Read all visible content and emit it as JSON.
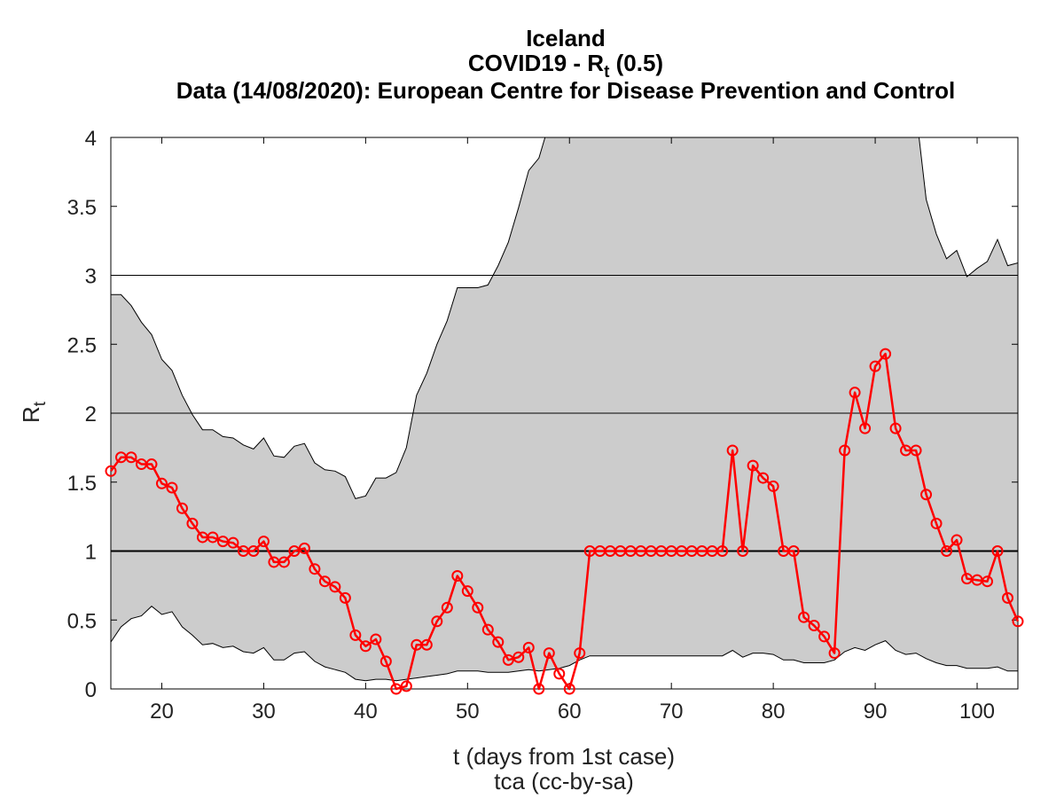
{
  "chart_data": {
    "type": "line",
    "title_lines": [
      "Iceland",
      "COVID19 - R",
      "Data (14/08/2020): European Centre for Disease Prevention and Control"
    ],
    "title_subscript": "t",
    "title_suffix": " (0.5)",
    "xlabel": "t (days from 1st case)",
    "ylabel": "R",
    "ylabel_subscript": "t",
    "credit": "tca (cc-by-sa)",
    "xlim": [
      15,
      104
    ],
    "ylim": [
      0,
      4
    ],
    "xticks": [
      20,
      30,
      40,
      50,
      60,
      70,
      80,
      90,
      100
    ],
    "yticks": [
      0,
      0.5,
      1,
      1.5,
      2,
      2.5,
      3,
      3.5,
      4
    ],
    "ytick_labels": [
      "0",
      "0.5",
      "1",
      "1.5",
      "2",
      "2.5",
      "3",
      "3.5",
      "4"
    ],
    "reference_lines": [
      1,
      2,
      3
    ],
    "grid": false,
    "band_color": "#cccccc",
    "series_color": "#ff0000",
    "band_upper": [
      [
        15,
        2.86
      ],
      [
        16,
        2.86
      ],
      [
        17,
        2.78
      ],
      [
        18,
        2.66
      ],
      [
        19,
        2.57
      ],
      [
        20,
        2.39
      ],
      [
        21,
        2.31
      ],
      [
        22,
        2.13
      ],
      [
        23,
        1.99
      ],
      [
        24,
        1.88
      ],
      [
        25,
        1.88
      ],
      [
        26,
        1.83
      ],
      [
        27,
        1.82
      ],
      [
        28,
        1.77
      ],
      [
        29,
        1.74
      ],
      [
        30,
        1.82
      ],
      [
        31,
        1.69
      ],
      [
        32,
        1.68
      ],
      [
        33,
        1.76
      ],
      [
        34,
        1.78
      ],
      [
        35,
        1.64
      ],
      [
        36,
        1.59
      ],
      [
        37,
        1.58
      ],
      [
        38,
        1.54
      ],
      [
        39,
        1.38
      ],
      [
        40,
        1.4
      ],
      [
        41,
        1.53
      ],
      [
        42,
        1.53
      ],
      [
        43,
        1.57
      ],
      [
        44,
        1.75
      ],
      [
        45,
        2.13
      ],
      [
        46,
        2.29
      ],
      [
        47,
        2.5
      ],
      [
        48,
        2.67
      ],
      [
        49,
        2.91
      ],
      [
        50,
        2.91
      ],
      [
        51,
        2.91
      ],
      [
        52,
        2.93
      ],
      [
        53,
        3.07
      ],
      [
        54,
        3.24
      ],
      [
        55,
        3.49
      ],
      [
        56,
        3.76
      ],
      [
        57,
        3.85
      ],
      [
        57.6,
        4.0
      ],
      [
        94.3,
        4.0
      ],
      [
        95,
        3.55
      ],
      [
        96,
        3.3
      ],
      [
        97,
        3.12
      ],
      [
        98,
        3.18
      ],
      [
        99,
        2.99
      ],
      [
        100,
        3.05
      ],
      [
        101,
        3.1
      ],
      [
        102,
        3.26
      ],
      [
        103,
        3.07
      ],
      [
        104,
        3.09
      ]
    ],
    "band_lower": [
      [
        15,
        0.34
      ],
      [
        16,
        0.45
      ],
      [
        17,
        0.51
      ],
      [
        18,
        0.53
      ],
      [
        19,
        0.6
      ],
      [
        20,
        0.54
      ],
      [
        21,
        0.56
      ],
      [
        22,
        0.45
      ],
      [
        23,
        0.39
      ],
      [
        24,
        0.32
      ],
      [
        25,
        0.33
      ],
      [
        26,
        0.3
      ],
      [
        27,
        0.31
      ],
      [
        28,
        0.27
      ],
      [
        29,
        0.26
      ],
      [
        30,
        0.3
      ],
      [
        31,
        0.21
      ],
      [
        32,
        0.21
      ],
      [
        33,
        0.26
      ],
      [
        34,
        0.27
      ],
      [
        35,
        0.2
      ],
      [
        36,
        0.16
      ],
      [
        37,
        0.14
      ],
      [
        38,
        0.12
      ],
      [
        39,
        0.07
      ],
      [
        40,
        0.06
      ],
      [
        41,
        0.07
      ],
      [
        42,
        0.07
      ],
      [
        43,
        0.06
      ],
      [
        44,
        0.07
      ],
      [
        45,
        0.08
      ],
      [
        46,
        0.09
      ],
      [
        47,
        0.1
      ],
      [
        48,
        0.11
      ],
      [
        49,
        0.13
      ],
      [
        50,
        0.13
      ],
      [
        51,
        0.13
      ],
      [
        52,
        0.12
      ],
      [
        53,
        0.12
      ],
      [
        54,
        0.12
      ],
      [
        55,
        0.13
      ],
      [
        56,
        0.14
      ],
      [
        57,
        0.13
      ],
      [
        58,
        0.14
      ],
      [
        59,
        0.15
      ],
      [
        60,
        0.17
      ],
      [
        61,
        0.21
      ],
      [
        62,
        0.24
      ],
      [
        63,
        0.24
      ],
      [
        64,
        0.24
      ],
      [
        65,
        0.24
      ],
      [
        66,
        0.24
      ],
      [
        67,
        0.24
      ],
      [
        68,
        0.24
      ],
      [
        69,
        0.24
      ],
      [
        70,
        0.24
      ],
      [
        71,
        0.24
      ],
      [
        72,
        0.24
      ],
      [
        73,
        0.24
      ],
      [
        74,
        0.24
      ],
      [
        75,
        0.24
      ],
      [
        76,
        0.28
      ],
      [
        77,
        0.23
      ],
      [
        78,
        0.26
      ],
      [
        79,
        0.26
      ],
      [
        80,
        0.25
      ],
      [
        81,
        0.21
      ],
      [
        82,
        0.21
      ],
      [
        83,
        0.19
      ],
      [
        84,
        0.19
      ],
      [
        85,
        0.19
      ],
      [
        86,
        0.21
      ],
      [
        87,
        0.27
      ],
      [
        88,
        0.3
      ],
      [
        89,
        0.28
      ],
      [
        90,
        0.32
      ],
      [
        91,
        0.35
      ],
      [
        92,
        0.28
      ],
      [
        93,
        0.25
      ],
      [
        94,
        0.26
      ],
      [
        95,
        0.22
      ],
      [
        96,
        0.19
      ],
      [
        97,
        0.17
      ],
      [
        98,
        0.17
      ],
      [
        99,
        0.15
      ],
      [
        100,
        0.15
      ],
      [
        101,
        0.15
      ],
      [
        102,
        0.16
      ],
      [
        103,
        0.13
      ],
      [
        104,
        0.13
      ]
    ],
    "series": [
      {
        "x": [
          15,
          16,
          17,
          18,
          19,
          20,
          21,
          22,
          23,
          24,
          25,
          26,
          27,
          28,
          29,
          30,
          31,
          32,
          33,
          34,
          35,
          36,
          37,
          38,
          39,
          40,
          41,
          42,
          43,
          44,
          45,
          46,
          47,
          48,
          49,
          50,
          51,
          52,
          53,
          54,
          55,
          56,
          57,
          58,
          59,
          60,
          61,
          62,
          63,
          64,
          65,
          66,
          67,
          68,
          69,
          70,
          71,
          72,
          73,
          74,
          75,
          76,
          77,
          78,
          79,
          80,
          81,
          82,
          83,
          84,
          85,
          86,
          87,
          88,
          89,
          90,
          91,
          92,
          93,
          94,
          95,
          96,
          97,
          98,
          99,
          100,
          101,
          102,
          103,
          104
        ],
        "values": [
          1.58,
          1.68,
          1.68,
          1.63,
          1.63,
          1.49,
          1.46,
          1.31,
          1.2,
          1.1,
          1.1,
          1.07,
          1.06,
          1.0,
          1.0,
          1.07,
          0.92,
          0.92,
          1.0,
          1.02,
          0.87,
          0.78,
          0.74,
          0.66,
          0.39,
          0.31,
          0.36,
          0.2,
          0.0,
          0.02,
          0.32,
          0.32,
          0.49,
          0.59,
          0.82,
          0.71,
          0.59,
          0.43,
          0.34,
          0.21,
          0.23,
          0.3,
          0.0,
          0.26,
          0.11,
          0.0,
          0.26,
          1.0,
          1.0,
          1.0,
          1.0,
          1.0,
          1.0,
          1.0,
          1.0,
          1.0,
          1.0,
          1.0,
          1.0,
          1.0,
          1.0,
          1.73,
          1.0,
          1.62,
          1.53,
          1.47,
          1.0,
          1.0,
          0.52,
          0.46,
          0.38,
          0.26,
          1.73,
          2.15,
          1.89,
          2.34,
          2.43,
          1.89,
          1.73,
          1.73,
          1.41,
          1.2,
          1.0,
          1.08,
          0.8,
          0.79,
          0.78,
          1.0,
          0.66,
          0.49
        ]
      }
    ]
  }
}
